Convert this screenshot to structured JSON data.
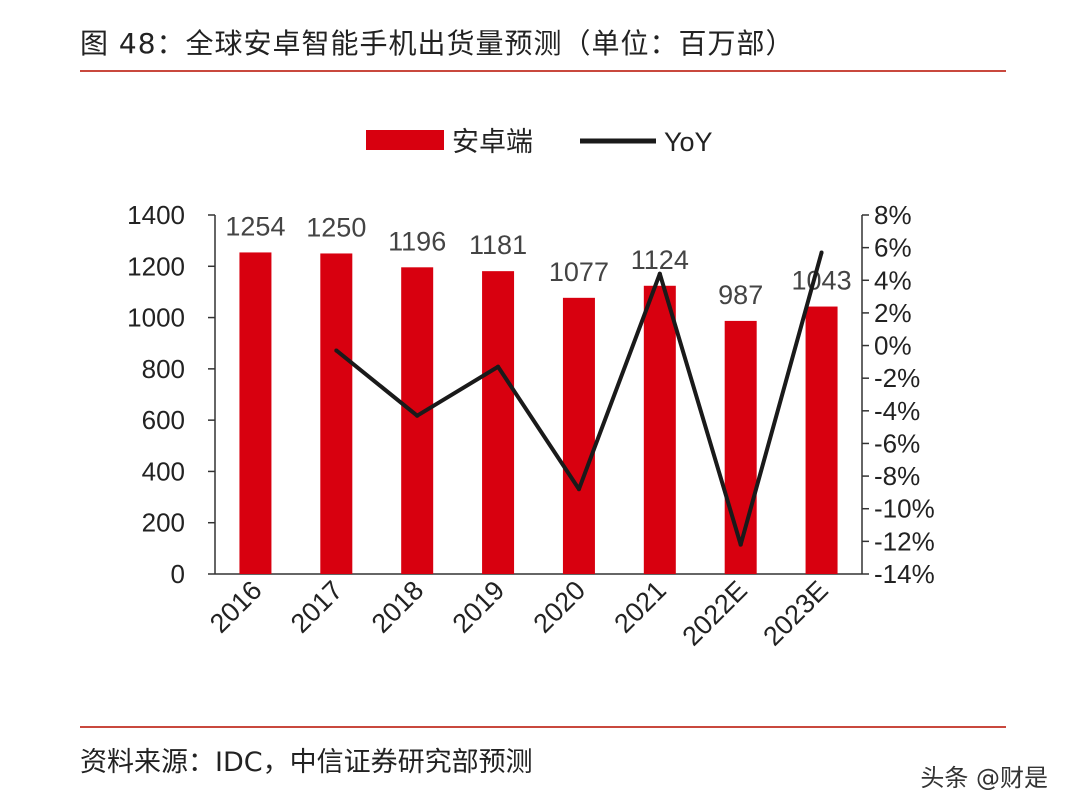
{
  "header": {
    "title": "图 48：全球安卓智能手机出货量预测（单位：百万部）"
  },
  "footer": {
    "source": "资料来源：IDC，中信证券研究部预测",
    "watermark": "头条 @财是"
  },
  "colors": {
    "bar": "#d8000f",
    "line": "#1a1a1a",
    "rule": "#c9483e",
    "axis": "#333333"
  },
  "chart_data": {
    "type": "bar",
    "title": "全球安卓智能手机出货量预测（单位：百万部）",
    "categories": [
      "2016",
      "2017",
      "2018",
      "2019",
      "2020",
      "2021",
      "2022E",
      "2023E"
    ],
    "series": [
      {
        "name": "安卓端",
        "type": "bar",
        "axis": "left",
        "values": [
          1254,
          1250,
          1196,
          1181,
          1077,
          1124,
          987,
          1043
        ]
      },
      {
        "name": "YoY",
        "type": "line",
        "axis": "right",
        "unit": "%",
        "values": [
          null,
          -0.3,
          -4.3,
          -1.3,
          -8.8,
          4.4,
          -12.2,
          5.7
        ]
      }
    ],
    "data_labels": [
      "1254",
      "1250",
      "1196",
      "1181",
      "1077",
      "1124",
      "987",
      "1043"
    ],
    "ylim_left": [
      0,
      1400
    ],
    "yticks_left": [
      "0",
      "200",
      "400",
      "600",
      "800",
      "1000",
      "1200",
      "1400"
    ],
    "ylim_right": [
      -14,
      8
    ],
    "yticks_right": [
      "-14%",
      "-12%",
      "-10%",
      "-8%",
      "-6%",
      "-4%",
      "-2%",
      "0%",
      "2%",
      "4%",
      "6%",
      "8%"
    ],
    "legend": {
      "position": "top-center",
      "items": [
        "安卓端",
        "YoY"
      ]
    },
    "grid": false
  }
}
